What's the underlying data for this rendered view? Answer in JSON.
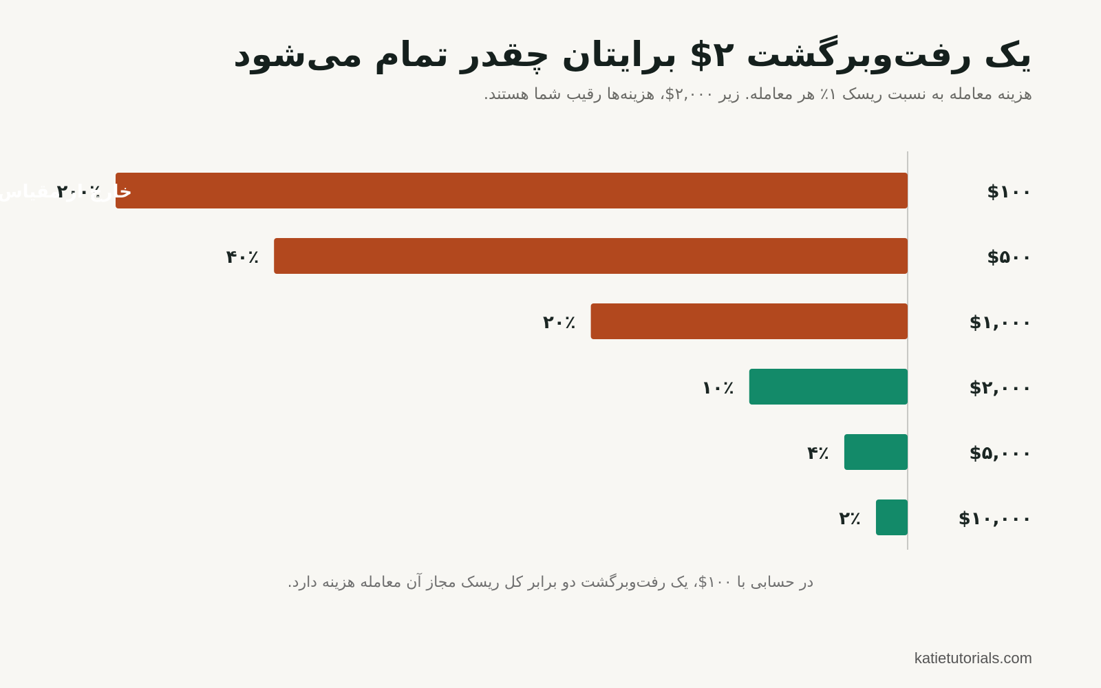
{
  "title": "یک رفت‌وبرگشت ۲$ برایتان چقدر تمام می‌شود",
  "subtitle": "هزینه معامله به نسبت ریسک ۱٪ هر معامله. زیر ۲,۰۰۰$، هزینه‌ها رقیب شما هستند.",
  "footnote": "در حسابی با ۱۰۰$، یک رفت‌وبرگشت دو برابر کل ریسک مجاز آن معامله هزینه دارد.",
  "source": "katietutorials.com",
  "colors": {
    "above_threshold": "#b2481e",
    "below_threshold": "#138a69",
    "axis": "#c8c8c4"
  },
  "chart_data": {
    "type": "bar",
    "orientation": "horizontal",
    "axis_side": "right",
    "categories": [
      "$۱۰۰",
      "$۵۰۰",
      "$۱,۰۰۰",
      "$۲,۰۰۰",
      "$۵,۰۰۰",
      "$۱۰,۰۰۰"
    ],
    "values": [
      200,
      40,
      20,
      10,
      4,
      2
    ],
    "value_labels": [
      "۲۰۰٪",
      "۴۰٪",
      "۲۰٪",
      "۱۰٪",
      "۴٪",
      "۲٪"
    ],
    "xlim": [
      0,
      50
    ],
    "clipped_label": "خارج از مقیاس",
    "threshold": 10,
    "unit": "%"
  }
}
